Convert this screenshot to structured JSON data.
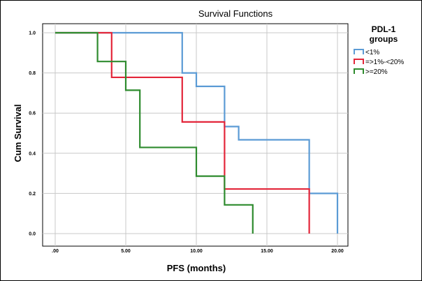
{
  "chart_data": {
    "type": "line",
    "title": "Survival Functions",
    "xlabel": "PFS (months)",
    "ylabel": "Cum Survival",
    "xlim": [
      0,
      20
    ],
    "ylim": [
      0,
      1
    ],
    "x_ticks": [
      ".00",
      "5.00",
      "10.00",
      "15.00",
      "20.00"
    ],
    "y_ticks": [
      "0.0",
      "0.2",
      "0.4",
      "0.6",
      "0.8",
      "1.0"
    ],
    "grid": true,
    "legend": {
      "title_lines": [
        "PDL-1",
        "groups"
      ],
      "placement": "right"
    },
    "series": [
      {
        "name": "<1%",
        "color": "#5b9bd5",
        "x": [
          0,
          9,
          10,
          12,
          13,
          18,
          20
        ],
        "y": [
          1.0,
          0.8,
          0.733,
          0.533,
          0.467,
          0.2,
          0.0
        ]
      },
      {
        "name": "=>1%-<20%",
        "color": "#e3263a",
        "x": [
          0,
          4,
          9,
          12,
          18
        ],
        "y": [
          1.0,
          0.778,
          0.556,
          0.222,
          0.0
        ]
      },
      {
        "name": ">=20%",
        "color": "#2e8b2e",
        "x": [
          0,
          3,
          5,
          6,
          10,
          12,
          14
        ],
        "y": [
          1.0,
          0.857,
          0.714,
          0.429,
          0.286,
          0.143,
          0.0
        ]
      }
    ]
  }
}
